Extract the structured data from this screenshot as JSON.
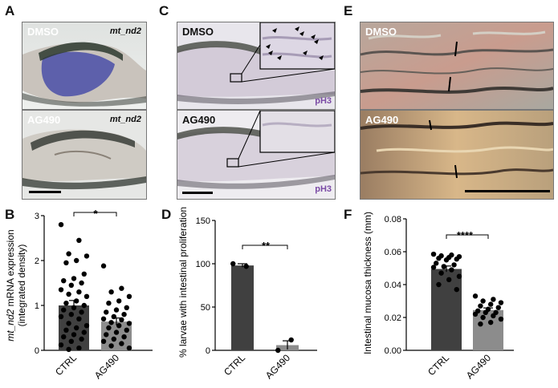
{
  "panel_letters": {
    "A": "A",
    "B": "B",
    "C": "C",
    "D": "D",
    "E": "E",
    "F": "F"
  },
  "panel_a": {
    "top_label": "DMSO",
    "bottom_label": "AG490",
    "gene_top": "mt_nd2",
    "gene_bottom": "mt_nd2"
  },
  "panel_c": {
    "top_label": "DMSO",
    "bottom_label": "AG490",
    "stain_top": "pH3",
    "stain_bottom": "pH3"
  },
  "panel_e": {
    "top_label": "DMSO",
    "bottom_label": "AG490"
  },
  "colors": {
    "dark_bar": "#404040",
    "light_bar": "#8c8c8c",
    "point": "#000000",
    "dmso_tissue": "#4a4fa8",
    "ph3": "#7a4aa5"
  },
  "chart_data": [
    {
      "panel": "B",
      "type": "bar",
      "categories": [
        "CTRL",
        "AG490"
      ],
      "values": [
        1.0,
        0.64
      ],
      "errors": [
        0.11,
        0.08
      ],
      "ylabel_italic": "mt_nd2",
      "ylabel_rest": " mRNA expression",
      "ylabel_line2": "(integrated density)",
      "ylim": [
        0,
        3
      ],
      "yticks": [
        "0",
        "1",
        "2",
        "3"
      ],
      "significance": "*",
      "points": [
        [
          2.8,
          2.45,
          2.15,
          2.1,
          2.0,
          1.95,
          1.7,
          1.6,
          1.55,
          1.5,
          1.45,
          1.35,
          1.3,
          1.25,
          1.2,
          1.1,
          1.05,
          1.0,
          0.95,
          0.9,
          0.85,
          0.8,
          0.75,
          0.7,
          0.6,
          0.55,
          0.5,
          0.45,
          0.4,
          0.35,
          0.3,
          0.25,
          0.2,
          0.12,
          0.05,
          0.02
        ],
        [
          1.88,
          1.38,
          1.3,
          1.2,
          1.1,
          1.05,
          0.95,
          0.9,
          0.85,
          0.8,
          0.75,
          0.7,
          0.68,
          0.62,
          0.6,
          0.55,
          0.5,
          0.45,
          0.4,
          0.35,
          0.3,
          0.25,
          0.2,
          0.15,
          0.1,
          0.05
        ]
      ]
    },
    {
      "panel": "D",
      "type": "bar",
      "categories": [
        "CTRL",
        "AG490"
      ],
      "values": [
        98,
        6
      ],
      "errors": [
        2,
        5
      ],
      "ylabel": "% larvae with intestinal proliferation",
      "ylim": [
        0,
        150
      ],
      "yticks": [
        "0",
        "50",
        "100",
        "150"
      ],
      "significance": "**",
      "points": [
        [
          100,
          97
        ],
        [
          0,
          12
        ]
      ]
    },
    {
      "panel": "F",
      "type": "bar",
      "categories": [
        "CTRL",
        "AG490"
      ],
      "values": [
        0.0495,
        0.0245
      ],
      "errors": [
        0.0018,
        0.0013
      ],
      "ylabel": "Intestinal mucosa thickness (mm)",
      "ylim": [
        0,
        0.08
      ],
      "yticks": [
        "0.00",
        "0.02",
        "0.04",
        "0.06",
        "0.08"
      ],
      "significance": "****",
      "points": [
        [
          0.0585,
          0.058,
          0.0575,
          0.057,
          0.0565,
          0.056,
          0.0555,
          0.055,
          0.053,
          0.052,
          0.051,
          0.0505,
          0.049,
          0.047,
          0.045,
          0.043,
          0.04,
          0.037
        ],
        [
          0.033,
          0.031,
          0.03,
          0.029,
          0.028,
          0.027,
          0.026,
          0.025,
          0.024,
          0.023,
          0.023,
          0.022,
          0.021,
          0.02,
          0.019,
          0.017,
          0.016
        ]
      ]
    }
  ]
}
